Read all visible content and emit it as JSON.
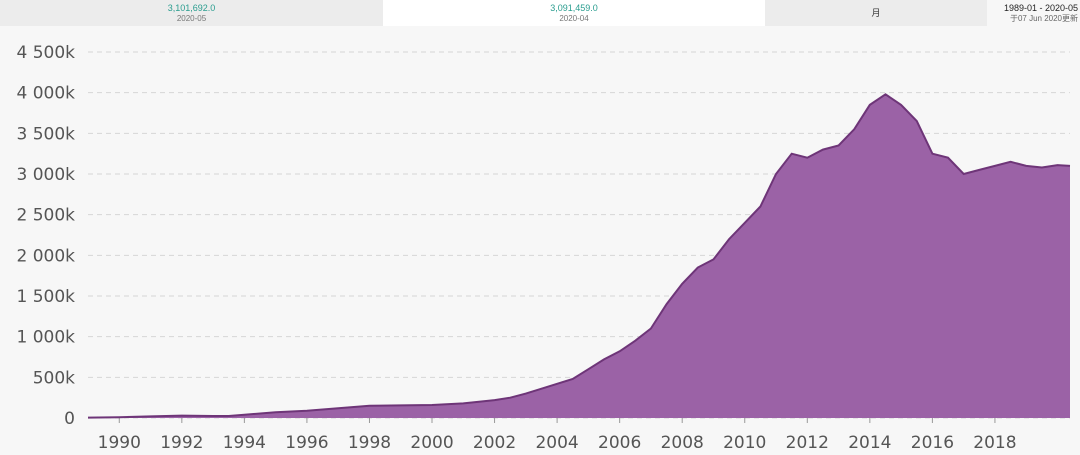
{
  "header": {
    "latest": {
      "value": "3,101,692.0",
      "date": "2020-05"
    },
    "previous": {
      "value": "3,091,459.0",
      "date": "2020-04"
    },
    "frequency": "月",
    "range": "1989-01 - 2020-05",
    "updated": "于07 Jun 2020更新"
  },
  "colors": {
    "area_fill": "#9b62a6",
    "area_stroke": "#6e3578",
    "value_text": "#2a9d8f"
  },
  "chart_data": {
    "type": "area",
    "title": "",
    "xlabel": "",
    "ylabel": "",
    "xlim": [
      1989,
      2020.4
    ],
    "ylim": [
      0,
      4500000
    ],
    "grid": true,
    "y_ticks": [
      0,
      500000,
      1000000,
      1500000,
      2000000,
      2500000,
      3000000,
      3500000,
      4000000,
      4500000
    ],
    "y_tick_labels": [
      "0",
      "500k",
      "1 000k",
      "1 500k",
      "2 000k",
      "2 500k",
      "3 000k",
      "3 500k",
      "4 000k",
      "4 500k"
    ],
    "x_ticks": [
      1990,
      1992,
      1994,
      1996,
      1998,
      2000,
      2002,
      2004,
      2006,
      2008,
      2010,
      2012,
      2014,
      2016,
      2018
    ],
    "x_tick_labels": [
      "1990",
      "1992",
      "1994",
      "1996",
      "1998",
      "2000",
      "2002",
      "2004",
      "2006",
      "2008",
      "2010",
      "2012",
      "2014",
      "2016",
      "2018"
    ],
    "x": [
      1989.0,
      1990.0,
      1991.0,
      1992.0,
      1993.0,
      1993.5,
      1994.0,
      1995.0,
      1996.0,
      1997.0,
      1998.0,
      1999.0,
      2000.0,
      2001.0,
      2002.0,
      2002.5,
      2003.0,
      2003.5,
      2004.0,
      2004.5,
      2005.0,
      2005.5,
      2006.0,
      2006.5,
      2007.0,
      2007.5,
      2008.0,
      2008.5,
      2009.0,
      2009.5,
      2010.0,
      2010.5,
      2011.0,
      2011.5,
      2012.0,
      2012.5,
      2013.0,
      2013.5,
      2014.0,
      2014.5,
      2015.0,
      2015.5,
      2016.0,
      2016.5,
      2017.0,
      2017.5,
      2018.0,
      2018.5,
      2019.0,
      2019.5,
      2020.0,
      2020.4
    ],
    "series": [
      {
        "values": [
          5000,
          10000,
          20000,
          30000,
          25000,
          25000,
          40000,
          70000,
          90000,
          120000,
          150000,
          155000,
          160000,
          180000,
          220000,
          250000,
          300000,
          360000,
          420000,
          480000,
          600000,
          720000,
          820000,
          950000,
          1100000,
          1400000,
          1650000,
          1850000,
          1950000,
          2200000,
          2400000,
          2600000,
          3000000,
          3250000,
          3200000,
          3300000,
          3350000,
          3550000,
          3850000,
          3980000,
          3850000,
          3650000,
          3250000,
          3200000,
          3000000,
          3050000,
          3100000,
          3150000,
          3100000,
          3080000,
          3110000,
          3100000
        ]
      }
    ]
  }
}
